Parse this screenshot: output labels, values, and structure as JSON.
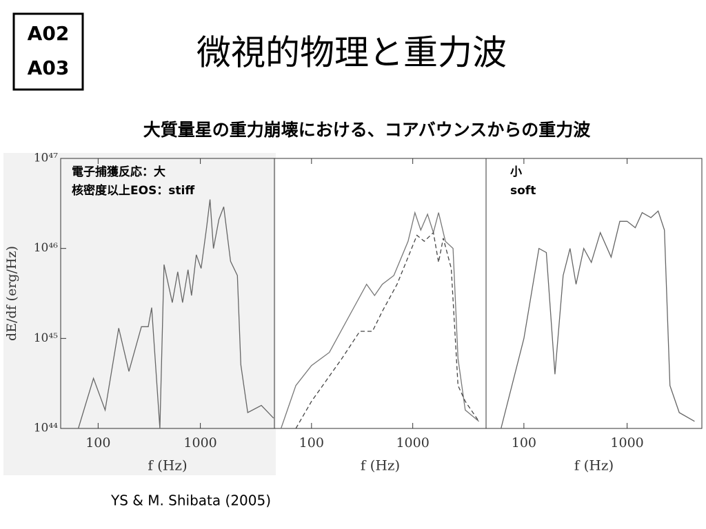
{
  "badge": [
    "A02",
    "A03"
  ],
  "title": "微視的物理と重力波",
  "subtitle": "大質量星の重力崩壊における、コアバウンスからの重力波",
  "citation": "YS & M. Shibata (2005)",
  "chart_data": [
    {
      "type": "line",
      "xscale": "log",
      "yscale": "log",
      "xlabel": "f (Hz)",
      "ylabel": "dE/df (erg/Hz)",
      "annotations": [
        "電子捕獲反応：大",
        "核密度以上EOS：stiff"
      ],
      "xlim": [
        43,
        5300
      ],
      "ylim": [
        1e+44,
        1e+47
      ],
      "xticks": [
        100,
        1000
      ],
      "yticks": [
        {
          "value": 1e+44,
          "label": "10⁴⁴"
        },
        {
          "value": 1e+45,
          "label": "10⁴⁵"
        },
        {
          "value": 1e+46,
          "label": "10⁴⁶"
        },
        {
          "value": 1e+47,
          "label": "10⁴⁷"
        }
      ],
      "series": [
        {
          "color": "#666666",
          "dash": "solid",
          "x": [
            64,
            90,
            117,
            159,
            200,
            265,
            309,
            334,
            402,
            441,
            531,
            601,
            670,
            757,
            819,
            912,
            1017,
            1149,
            1242,
            1342,
            1518,
            1692,
            1974,
            2303,
            2489,
            2904,
            3954,
            5200
          ],
          "values": [
            1e+44,
            3.6e+44,
            1.6e+44,
            1.3e+45,
            4.3e+44,
            1.35e+45,
            1.35e+45,
            2.2e+45,
            1e+44,
            6.6e+45,
            2.5e+45,
            5.5e+45,
            2.5e+45,
            5.8e+45,
            3e+45,
            8.5e+45,
            6e+45,
            1.7e+46,
            3.5e+46,
            1e+46,
            2.1e+46,
            2.9e+46,
            7.2e+45,
            5e+45,
            5.1e+44,
            1.5e+44,
            1.8e+44,
            1.3e+44
          ]
        }
      ]
    },
    {
      "type": "line",
      "xscale": "log",
      "yscale": "log",
      "xlabel": "f (Hz)",
      "xlim": [
        43,
        5300
      ],
      "ylim": [
        1e+44,
        1e+47
      ],
      "xticks": [
        100,
        1000
      ],
      "series": [
        {
          "color": "#777777",
          "dash": "solid",
          "x": [
            50,
            70,
            100,
            150,
            250,
            350,
            420,
            500,
            650,
            900,
            1050,
            1200,
            1400,
            1600,
            1800,
            2100,
            2500,
            2800,
            3300,
            4500
          ],
          "values": [
            1e+44,
            3e+44,
            5e+44,
            7e+44,
            2e+45,
            4e+45,
            3e+45,
            4e+45,
            5e+45,
            1.2e+46,
            2.5e+46,
            1.6e+46,
            2.4e+46,
            1.5e+46,
            2.5e+46,
            1.2e+46,
            1e+46,
            6e+44,
            1.6e+44,
            1.2e+44
          ]
        },
        {
          "color": "#444444",
          "dash": "dashed",
          "x": [
            70,
            100,
            200,
            300,
            400,
            500,
            700,
            900,
            1100,
            1300,
            1600,
            1800,
            2000,
            2400,
            2800,
            3300,
            4500
          ],
          "values": [
            1e+44,
            2e+44,
            6e+44,
            1.2e+45,
            1.2e+45,
            2e+45,
            4e+45,
            8e+45,
            1.4e+46,
            1.2e+46,
            1.5e+46,
            7e+45,
            1.3e+46,
            6e+45,
            3e+44,
            2e+44,
            1.2e+44
          ]
        }
      ]
    },
    {
      "type": "line",
      "xscale": "log",
      "yscale": "log",
      "xlabel": "f (Hz)",
      "annotations": [
        "小",
        "soft"
      ],
      "xlim": [
        43,
        5300
      ],
      "ylim": [
        1e+44,
        1e+47
      ],
      "xticks": [
        100,
        1000
      ],
      "series": [
        {
          "color": "#666666",
          "dash": "solid",
          "x": [
            60,
            100,
            140,
            165,
            200,
            240,
            280,
            320,
            380,
            450,
            550,
            700,
            850,
            1000,
            1200,
            1400,
            1700,
            2000,
            2300,
            2600,
            3200,
            4500
          ],
          "values": [
            1e+44,
            1e+45,
            1e+46,
            9e+45,
            4e+44,
            5e+45,
            1e+46,
            4e+45,
            1e+46,
            7e+45,
            1.5e+46,
            8e+45,
            2e+46,
            2e+46,
            1.7e+46,
            2.5e+46,
            2.2e+46,
            2.6e+46,
            1.6e+46,
            3e+44,
            1.5e+44,
            1.2e+44
          ]
        }
      ]
    }
  ]
}
